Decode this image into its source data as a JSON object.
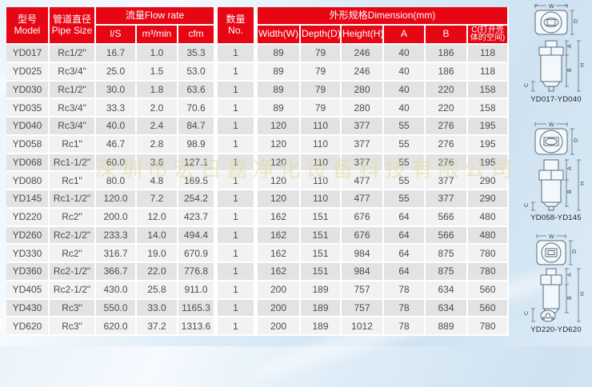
{
  "colors": {
    "header_red": "#e60614",
    "row_dark": "#e3e3e3",
    "row_light": "#f2f2f2",
    "background_blue": "#cfe2f1"
  },
  "watermark": "深圳市宏日嘉净化设备科技有限公司",
  "table": {
    "header": {
      "model_zh": "型号",
      "model_en": "Model",
      "pipe_zh": "管道直径",
      "pipe_en": "Pipe Size",
      "flow": "流量Flow rate",
      "units": {
        "ls": "l/S",
        "m3min": "m³/min",
        "cfm": "cfm"
      },
      "qty_zh": "数量",
      "qty_en": "No.",
      "dimension": "外形规格Dimension(mm)",
      "dim_cols": {
        "w": "Width(W)",
        "d": "Depth(D)",
        "h": "Height(H)",
        "a": "A",
        "b": "B",
        "c": "C(打开壳体的空间)"
      }
    },
    "row_keys": [
      "model",
      "pipe",
      "ls",
      "m3min",
      "cfm",
      "qty",
      "w",
      "d",
      "h",
      "a",
      "b",
      "c"
    ],
    "rows": [
      {
        "model": "YD017",
        "pipe": "Rc1/2\"",
        "ls": "16.7",
        "m3min": "1.0",
        "cfm": "35.3",
        "qty": "1",
        "w": "89",
        "d": "79",
        "h": "246",
        "a": "40",
        "b": "186",
        "c": "118"
      },
      {
        "model": "YD025",
        "pipe": "Rc3/4\"",
        "ls": "25.0",
        "m3min": "1.5",
        "cfm": "53.0",
        "qty": "1",
        "w": "89",
        "d": "79",
        "h": "246",
        "a": "40",
        "b": "186",
        "c": "118"
      },
      {
        "model": "YD030",
        "pipe": "Rc1/2\"",
        "ls": "30.0",
        "m3min": "1.8",
        "cfm": "63.6",
        "qty": "1",
        "w": "89",
        "d": "79",
        "h": "280",
        "a": "40",
        "b": "220",
        "c": "158"
      },
      {
        "model": "YD035",
        "pipe": "Rc3/4\"",
        "ls": "33.3",
        "m3min": "2.0",
        "cfm": "70.6",
        "qty": "1",
        "w": "89",
        "d": "79",
        "h": "280",
        "a": "40",
        "b": "220",
        "c": "158"
      },
      {
        "model": "YD040",
        "pipe": "Rc3/4\"",
        "ls": "40.0",
        "m3min": "2.4",
        "cfm": "84.7",
        "qty": "1",
        "w": "120",
        "d": "110",
        "h": "377",
        "a": "55",
        "b": "276",
        "c": "195"
      },
      {
        "model": "YD058",
        "pipe": "Rc1\"",
        "ls": "46.7",
        "m3min": "2.8",
        "cfm": "98.9",
        "qty": "1",
        "w": "120",
        "d": "110",
        "h": "377",
        "a": "55",
        "b": "276",
        "c": "195"
      },
      {
        "model": "YD068",
        "pipe": "Rc1-1/2\"",
        "ls": "60.0",
        "m3min": "3.6",
        "cfm": "127.1",
        "qty": "1",
        "w": "120",
        "d": "110",
        "h": "377",
        "a": "55",
        "b": "276",
        "c": "195"
      },
      {
        "model": "YD080",
        "pipe": "Rc1\"",
        "ls": "80.0",
        "m3min": "4.8",
        "cfm": "169.5",
        "qty": "1",
        "w": "120",
        "d": "110",
        "h": "477",
        "a": "55",
        "b": "377",
        "c": "290"
      },
      {
        "model": "YD145",
        "pipe": "Rc1-1/2\"",
        "ls": "120.0",
        "m3min": "7.2",
        "cfm": "254.2",
        "qty": "1",
        "w": "120",
        "d": "110",
        "h": "477",
        "a": "55",
        "b": "377",
        "c": "290"
      },
      {
        "model": "YD220",
        "pipe": "Rc2\"",
        "ls": "200.0",
        "m3min": "12.0",
        "cfm": "423.7",
        "qty": "1",
        "w": "162",
        "d": "151",
        "h": "676",
        "a": "64",
        "b": "566",
        "c": "480"
      },
      {
        "model": "YD260",
        "pipe": "Rc2-1/2\"",
        "ls": "233.3",
        "m3min": "14.0",
        "cfm": "494.4",
        "qty": "1",
        "w": "162",
        "d": "151",
        "h": "676",
        "a": "64",
        "b": "566",
        "c": "480"
      },
      {
        "model": "YD330",
        "pipe": "Rc2\"",
        "ls": "316.7",
        "m3min": "19.0",
        "cfm": "670.9",
        "qty": "1",
        "w": "162",
        "d": "151",
        "h": "984",
        "a": "64",
        "b": "875",
        "c": "780"
      },
      {
        "model": "YD360",
        "pipe": "Rc2-1/2\"",
        "ls": "366.7",
        "m3min": "22.0",
        "cfm": "776.8",
        "qty": "1",
        "w": "162",
        "d": "151",
        "h": "984",
        "a": "64",
        "b": "875",
        "c": "780"
      },
      {
        "model": "YD405",
        "pipe": "Rc2-1/2\"",
        "ls": "430.0",
        "m3min": "25.8",
        "cfm": "911.0",
        "qty": "1",
        "w": "200",
        "d": "189",
        "h": "757",
        "a": "78",
        "b": "634",
        "c": "560"
      },
      {
        "model": "YD430",
        "pipe": "Rc3\"",
        "ls": "550.0",
        "m3min": "33.0",
        "cfm": "1165.3",
        "qty": "1",
        "w": "200",
        "d": "189",
        "h": "757",
        "a": "78",
        "b": "634",
        "c": "560"
      },
      {
        "model": "YD620",
        "pipe": "Rc3\"",
        "ls": "620.0",
        "m3min": "37.2",
        "cfm": "1313.6",
        "qty": "1",
        "w": "200",
        "d": "189",
        "h": "1012",
        "a": "78",
        "b": "889",
        "c": "780"
      }
    ]
  },
  "diagrams": [
    {
      "caption": "YD017-YD040",
      "labels": {
        "w": "W",
        "d": "D",
        "a": "A",
        "b": "B",
        "h": "H",
        "c": "C"
      }
    },
    {
      "caption": "YD058-YD145",
      "labels": {
        "w": "W",
        "d": "D",
        "a": "A",
        "b": "B",
        "h": "H",
        "c": "C"
      }
    },
    {
      "caption": "YD220-YD620",
      "labels": {
        "w": "W",
        "d": "D",
        "a": "A",
        "b": "B",
        "h": "H",
        "c": "C"
      }
    }
  ]
}
